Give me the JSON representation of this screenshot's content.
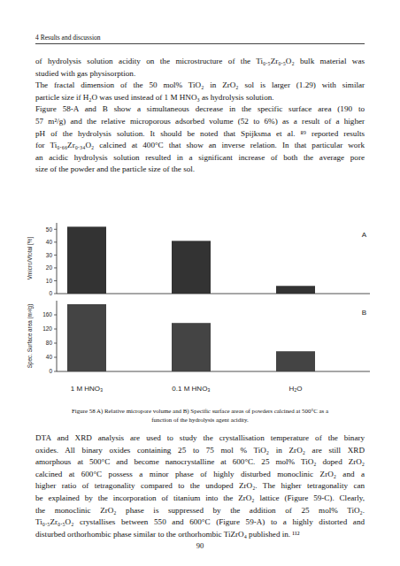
{
  "header": {
    "text": "4 Results and discussion"
  },
  "paragraphs": [
    {
      "lines": [
        "of hydrolysis solution acidity on the microstructure of the Ti₀.₅Zr₀.₅O₂ bulk material was",
        "studied with gas physisorption."
      ]
    },
    {
      "lines": [
        "The fractal dimension of the 50 mol% TiO₂ in ZrO₂ sol is larger (1.29) with similar",
        "particle size if H₂O was used instead of 1 M HNO₃ as hydrolysis solution."
      ]
    },
    {
      "lines": [
        "Figure 58-A and B show a simultaneous decrease in the specific surface area (190 to",
        "57 m²/g) and the relative microporous adsorbed volume (52 to 6%) as a result of a higher",
        "pH of the hydrolysis solution. It should be noted that Spijksma et al. ⁸⁹ reported results",
        "for Ti₀.₆₆Zr₀.₃₄O₂ calcined at 400°C that show an inverse relation. In that particular work",
        "an acidic hydrolysis solution resulted in a significant increase of both the average pore",
        "size of the powder and the particle size of the sol."
      ]
    }
  ],
  "chart_data": [
    {
      "type": "bar",
      "annotation": "A",
      "ylabel": "Vmicro/Vtotal [%]",
      "categories": [
        null,
        null,
        null
      ],
      "values": [
        52,
        41,
        6
      ],
      "color": "#333333",
      "ylim": [
        0,
        55
      ],
      "yticks": [
        0,
        10,
        20,
        30,
        40,
        50
      ]
    },
    {
      "type": "bar",
      "annotation": "B",
      "ylabel": "Spec. Surface area (m²/g)",
      "categories": [
        "1 M HNO₃",
        "0.1 M HNO₃",
        "H₂O"
      ],
      "values": [
        190,
        137,
        57
      ],
      "color": "#444444",
      "ylim": [
        0,
        200
      ],
      "yticks": [
        0,
        40,
        80,
        120,
        160
      ]
    }
  ],
  "caption": {
    "lines": [
      "Figure 58 A) Relative micropore volume and B) Specific surface areas of powders calcined at 500°C as a",
      "function of the hydrolysis agent acidity."
    ]
  },
  "paragraphs_after": [
    {
      "lines": [
        "DTA and XRD analysis are used to study the crystallisation temperature of the binary",
        "oxides. All binary oxides containing 25 to 75 mol % TiO₂ in ZrO₂ are still XRD",
        "amorphous at 500°C and become nanocrystalline at 600°C. 25 mol% TiO₂ doped ZrO₂",
        "calcined at 600°C possess a minor phase of highly disturbed monoclinic ZrO₂ and a",
        "higher ratio of tetragonality compared to the undoped ZrO₂. The higher tetragonality can",
        "be explained by the incorporation of titanium into the ZrO₂ lattice (Figure 59-C). Clearly,",
        "the monoclinic ZrO₂ phase is suppressed by the addition of 25 mol% TiO₂.",
        "Ti₀.₅Zr₀.₅O₂ crystallises between 550 and 600°C (Figure 59-A) to a highly distorted and",
        "disturbed orthorhombic phase similar to the orthorhombic TiZrO₄ published in. ¹¹²"
      ]
    }
  ],
  "page_number": "90"
}
